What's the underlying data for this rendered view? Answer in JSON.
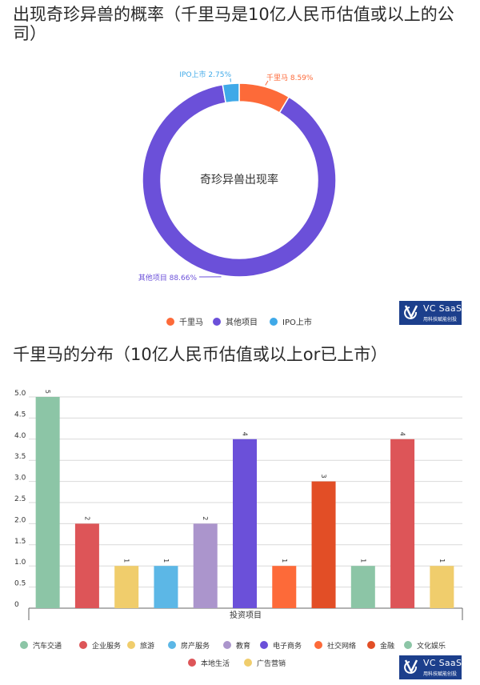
{
  "donut": {
    "title": "出现奇珍异兽的概率（千里马是10亿人民币估值或以上的公司）",
    "center_label": "奇珍异兽出现率",
    "legend": [
      "千里马",
      "其他项目",
      "IPO上市"
    ],
    "colors": [
      "#fd6a39",
      "#6b50d9",
      "#3fa9e8"
    ]
  },
  "bar": {
    "title": "千里马的分布（10亿人民币估值或以上or已上市）",
    "xlabel": "投资项目"
  },
  "logo": {
    "brand": "VC SaaS",
    "tagline": "用科技赋能创投"
  },
  "chart_data": [
    {
      "type": "pie",
      "title": "出现奇珍异兽的概率（千里马是10亿人民币估值或以上的公司）",
      "center_label": "奇珍异兽出现率",
      "slices": [
        {
          "name": "千里马",
          "value": 8.59,
          "label": "千里马 8.59%",
          "color": "#fd6a39"
        },
        {
          "name": "其他项目",
          "value": 88.66,
          "label": "其他项目 88.66%",
          "color": "#6b50d9"
        },
        {
          "name": "IPO上市",
          "value": 2.75,
          "label": "IPO上市 2.75%",
          "color": "#3fa9e8"
        }
      ],
      "legend_position": "bottom"
    },
    {
      "type": "bar",
      "title": "千里马的分布（10亿人民币估值或以上or已上市）",
      "xlabel": "投资项目",
      "ylabel": "",
      "ylim": [
        0,
        5
      ],
      "yticks": [
        "0",
        "0.5",
        "1.0",
        "1.5",
        "2.0",
        "2.5",
        "3.0",
        "3.5",
        "4.0",
        "4.5",
        "5.0"
      ],
      "categories": [
        "汽车交通",
        "企业服务",
        "旅游",
        "房产服务",
        "教育",
        "电子商务",
        "社交网络",
        "金融",
        "文化娱乐",
        "本地生活",
        "广告营销"
      ],
      "values": [
        5,
        2,
        1,
        1,
        2,
        4,
        1,
        3,
        1,
        4,
        1
      ],
      "colors": [
        "#8cc5a6",
        "#dd5558",
        "#f0cd6c",
        "#5cb7e6",
        "#ab95cc",
        "#6b50d9",
        "#fd6a39",
        "#e24e26",
        "#8cc5a6",
        "#dd5558",
        "#f0cd6c"
      ],
      "grid": true,
      "legend_position": "bottom"
    }
  ]
}
